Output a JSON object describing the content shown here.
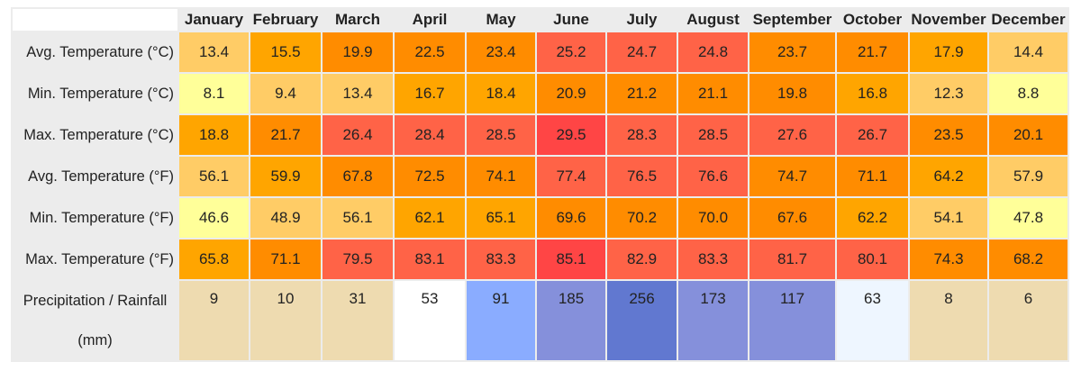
{
  "table": {
    "months": [
      "January",
      "February",
      "March",
      "April",
      "May",
      "June",
      "July",
      "August",
      "September",
      "October",
      "November",
      "December"
    ],
    "rows": [
      {
        "label": "Avg. Temperature (°C)",
        "values": [
          "13.4",
          "15.5",
          "19.9",
          "22.5",
          "23.4",
          "25.2",
          "24.7",
          "24.8",
          "23.7",
          "21.7",
          "17.9",
          "14.4"
        ],
        "colors": [
          "#ffcc66",
          "#ffa500",
          "#ff8c00",
          "#ff8c00",
          "#ff8c00",
          "#ff6347",
          "#ff6347",
          "#ff6347",
          "#ff8c00",
          "#ff8c00",
          "#ffa500",
          "#ffcc66"
        ]
      },
      {
        "label": "Min. Temperature (°C)",
        "values": [
          "8.1",
          "9.4",
          "13.4",
          "16.7",
          "18.4",
          "20.9",
          "21.2",
          "21.1",
          "19.8",
          "16.8",
          "12.3",
          "8.8"
        ],
        "colors": [
          "#ffff99",
          "#ffcc66",
          "#ffcc66",
          "#ffa500",
          "#ffa500",
          "#ff8c00",
          "#ff8c00",
          "#ff8c00",
          "#ff8c00",
          "#ffa500",
          "#ffcc66",
          "#ffff99"
        ]
      },
      {
        "label": "Max. Temperature (°C)",
        "values": [
          "18.8",
          "21.7",
          "26.4",
          "28.4",
          "28.5",
          "29.5",
          "28.3",
          "28.5",
          "27.6",
          "26.7",
          "23.5",
          "20.1"
        ],
        "colors": [
          "#ffa500",
          "#ff8c00",
          "#ff6347",
          "#ff6347",
          "#ff6347",
          "#ff4545",
          "#ff6347",
          "#ff6347",
          "#ff6347",
          "#ff6347",
          "#ff8c00",
          "#ff8c00"
        ]
      },
      {
        "label": "Avg. Temperature (°F)",
        "values": [
          "56.1",
          "59.9",
          "67.8",
          "72.5",
          "74.1",
          "77.4",
          "76.5",
          "76.6",
          "74.7",
          "71.1",
          "64.2",
          "57.9"
        ],
        "colors": [
          "#ffcc66",
          "#ffa500",
          "#ff8c00",
          "#ff8c00",
          "#ff8c00",
          "#ff6347",
          "#ff6347",
          "#ff6347",
          "#ff8c00",
          "#ff8c00",
          "#ffa500",
          "#ffcc66"
        ]
      },
      {
        "label": "Min. Temperature (°F)",
        "values": [
          "46.6",
          "48.9",
          "56.1",
          "62.1",
          "65.1",
          "69.6",
          "70.2",
          "70.0",
          "67.6",
          "62.2",
          "54.1",
          "47.8"
        ],
        "colors": [
          "#ffff99",
          "#ffcc66",
          "#ffcc66",
          "#ffa500",
          "#ffa500",
          "#ff8c00",
          "#ff8c00",
          "#ff8c00",
          "#ff8c00",
          "#ffa500",
          "#ffcc66",
          "#ffff99"
        ]
      },
      {
        "label": "Max. Temperature (°F)",
        "values": [
          "65.8",
          "71.1",
          "79.5",
          "83.1",
          "83.3",
          "85.1",
          "82.9",
          "83.3",
          "81.7",
          "80.1",
          "74.3",
          "68.2"
        ],
        "colors": [
          "#ffa500",
          "#ff8c00",
          "#ff6347",
          "#ff6347",
          "#ff6347",
          "#ff4545",
          "#ff6347",
          "#ff6347",
          "#ff6347",
          "#ff6347",
          "#ff8c00",
          "#ff8c00"
        ]
      },
      {
        "label": "Precipitation / Rainfall (mm)",
        "values": [
          "9",
          "10",
          "31",
          "53",
          "91",
          "185",
          "256",
          "173",
          "117",
          "63",
          "8",
          "6"
        ],
        "colors": [
          "#eedbb0",
          "#eedbb0",
          "#eedbb0",
          "#ffffff",
          "#8aacff",
          "#8590db",
          "#6178d0",
          "#8590db",
          "#8590db",
          "#eef6ff",
          "#eedbb0",
          "#eedbb0"
        ]
      }
    ]
  }
}
